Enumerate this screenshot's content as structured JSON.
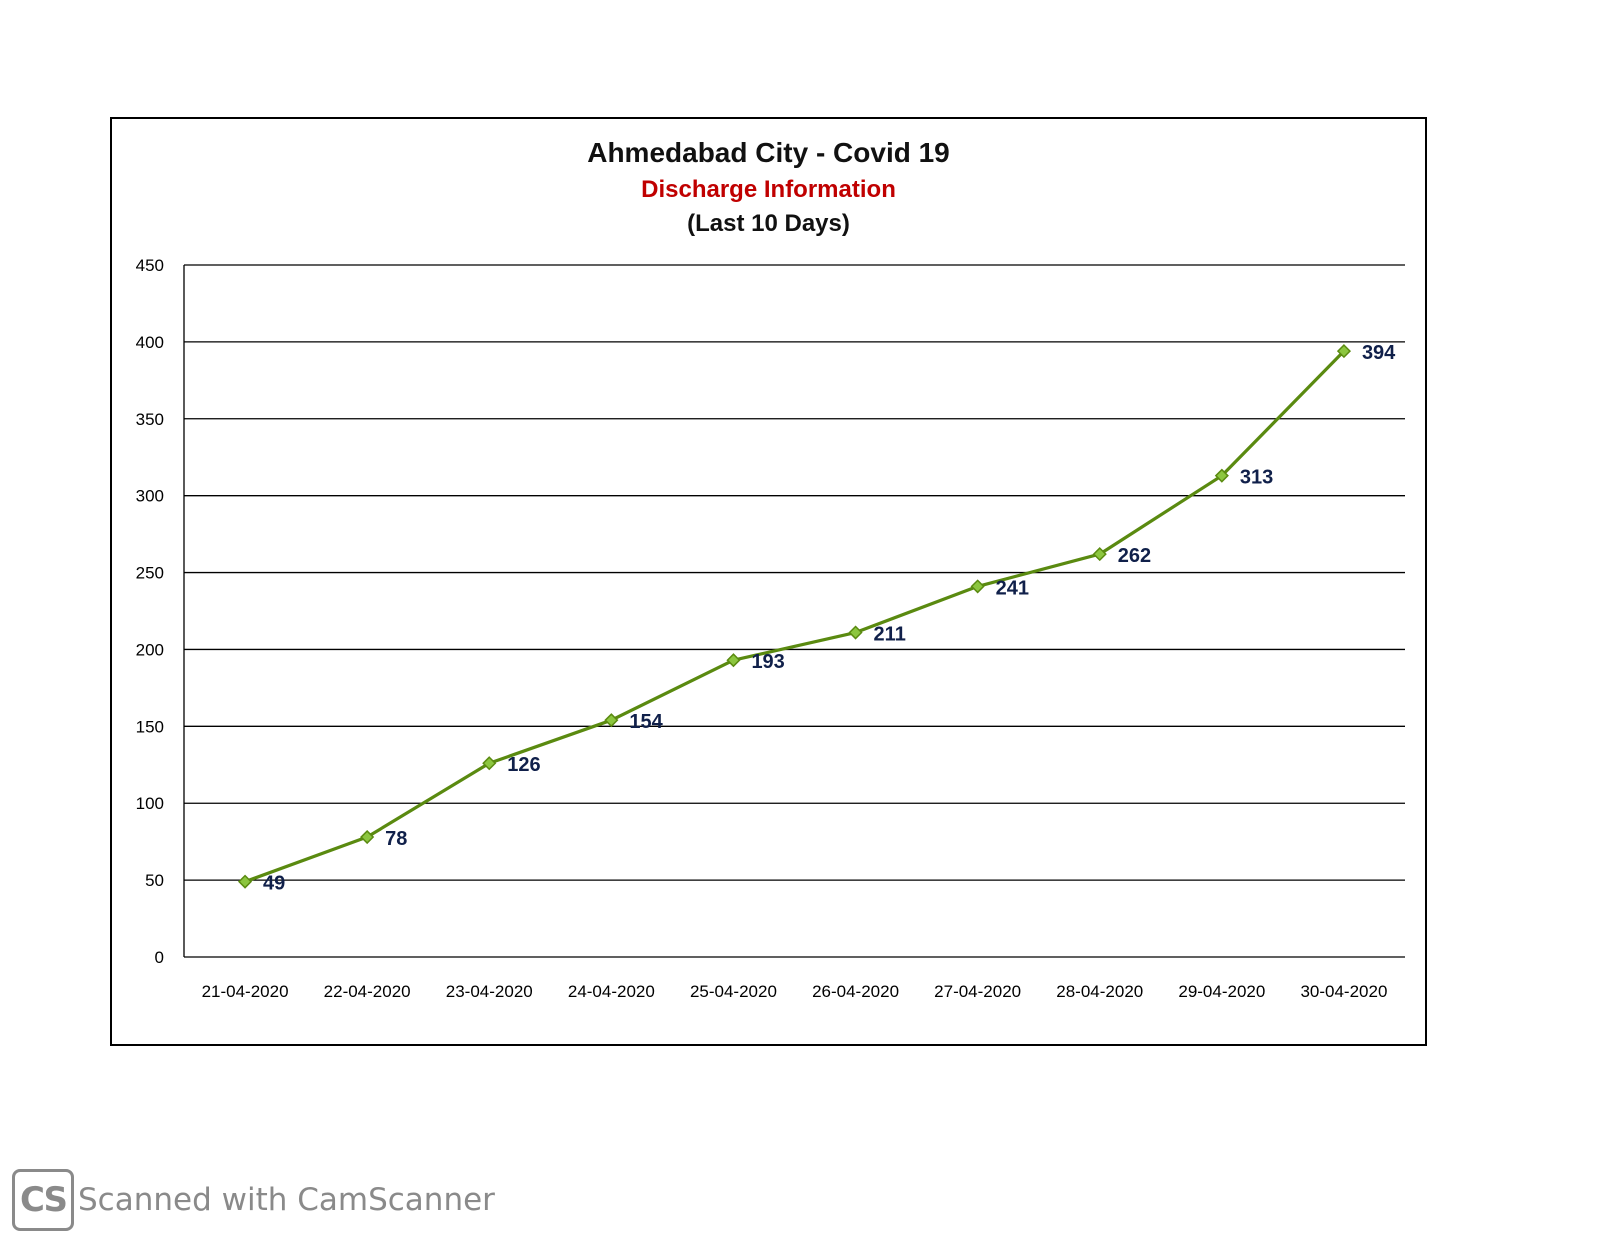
{
  "chart_data": {
    "type": "line",
    "title": "Ahmedabad City - Covid 19",
    "subtitle": "Discharge Information",
    "subtitle2": "(Last 10 Days)",
    "categories": [
      "21-04-2020",
      "22-04-2020",
      "23-04-2020",
      "24-04-2020",
      "25-04-2020",
      "26-04-2020",
      "27-04-2020",
      "28-04-2020",
      "29-04-2020",
      "30-04-2020"
    ],
    "series": [
      {
        "values": [
          49,
          78,
          126,
          154,
          193,
          211,
          241,
          262,
          313,
          394
        ],
        "color": "#5a8a10",
        "marker_color": "#8cc63f"
      }
    ],
    "ylim": [
      0,
      450
    ],
    "yticks": [
      0,
      50,
      100,
      150,
      200,
      250,
      300,
      350,
      400,
      450
    ],
    "grid": true,
    "data_labels": true,
    "legend": "none"
  },
  "watermark": {
    "logo_text": "CS",
    "text": "Scanned with CamScanner"
  },
  "colors": {
    "subtitle": "#c00000",
    "line": "#5a8a10",
    "marker": "#8cc63f",
    "label": "#10204a"
  }
}
